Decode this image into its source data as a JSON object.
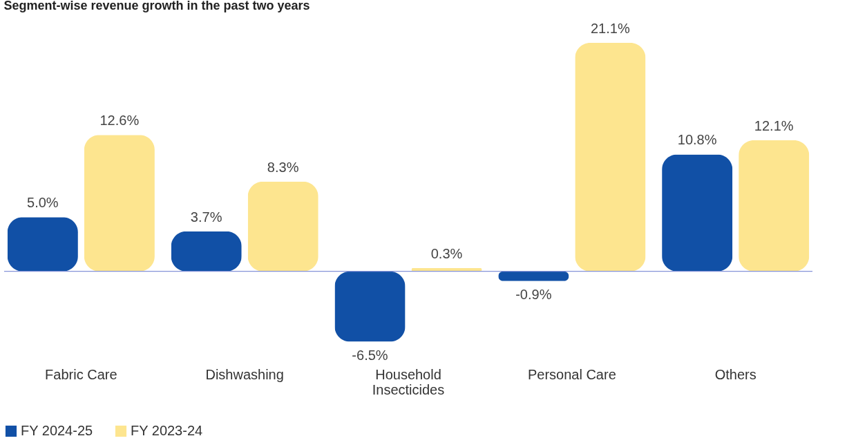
{
  "chart_data": {
    "type": "bar",
    "title": "Segment-wise revenue growth in the past two years",
    "categories": [
      "Fabric Care",
      "Dishwashing",
      "Household Insecticides",
      "Personal Care",
      "Others"
    ],
    "series": [
      {
        "name": "FY 2024-25",
        "color": "#1150a6",
        "values": [
          5.0,
          3.7,
          -6.5,
          -0.9,
          10.8
        ],
        "value_labels": [
          "5.0%",
          "3.7%",
          "-6.5%",
          "-0.9%",
          "10.8%"
        ]
      },
      {
        "name": "FY 2023-24",
        "color": "#fde58f",
        "values": [
          12.6,
          8.3,
          0.3,
          21.1,
          12.1
        ],
        "value_labels": [
          "12.6%",
          "8.3%",
          "0.3%",
          "21.1%",
          "12.1%"
        ]
      }
    ],
    "tick_labels": "x",
    "grid": false,
    "legend": "bottom left",
    "ref_lines": [
      {
        "axis": "y",
        "value": 0,
        "color": "#8593d8"
      }
    ]
  }
}
